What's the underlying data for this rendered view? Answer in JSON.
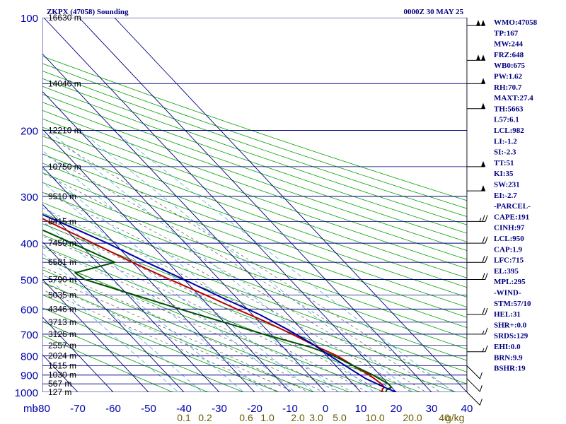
{
  "title_left": "ZKPX (47058) Sounding",
  "title_right": "0000Z 30 MAY 25",
  "axis_corner": "mb",
  "chart_data": {
    "type": "line",
    "title": "ZKPX (47058) Sounding",
    "subtitle": "0000Z 30 MAY 25",
    "pressure_levels": [
      100,
      200,
      300,
      400,
      500,
      600,
      700,
      800,
      900,
      1000
    ],
    "height_labels": [
      {
        "p": 100,
        "label": "16630 m"
      },
      {
        "p": 150,
        "label": "14040 m"
      },
      {
        "p": 200,
        "label": "12210 m"
      },
      {
        "p": 250,
        "label": "10750 m"
      },
      {
        "p": 300,
        "label": "9510 m"
      },
      {
        "p": 350,
        "label": "8415 m"
      },
      {
        "p": 400,
        "label": "7450 m"
      },
      {
        "p": 450,
        "label": "6581 m"
      },
      {
        "p": 500,
        "label": "5790 m"
      },
      {
        "p": 550,
        "label": "5035 m"
      },
      {
        "p": 600,
        "label": "4346 m"
      },
      {
        "p": 650,
        "label": "3713 m"
      },
      {
        "p": 700,
        "label": "3126 m"
      },
      {
        "p": 750,
        "label": "2557 m"
      },
      {
        "p": 800,
        "label": "2024 m"
      },
      {
        "p": 850,
        "label": "1515 m"
      },
      {
        "p": 900,
        "label": "1030 m"
      },
      {
        "p": 950,
        "label": "567 m"
      },
      {
        "p": 1000,
        "label": "127 m"
      }
    ],
    "temperature_ticks": [
      "-80",
      "-70",
      "-60",
      "-50",
      "-40",
      "-30",
      "-20",
      "-10",
      "0",
      "10",
      "20",
      "30",
      "40"
    ],
    "mixing_ratio_labels": [
      "0.1",
      "0.2",
      "0.6",
      "1.0",
      "2.0",
      "3.0",
      "5.0",
      "10.0",
      "20.0",
      "40"
    ],
    "mixing_ratio_unit": "g/kg",
    "xlim": [
      -80,
      40
    ],
    "ylim": [
      1000,
      100
    ],
    "y_scale": "log",
    "series": [
      {
        "key": "temperature",
        "color": "#bb0000",
        "points": [
          [
            -52,
            100
          ],
          [
            -53,
            140
          ],
          [
            -55,
            160
          ],
          [
            -54,
            175
          ],
          [
            -54,
            200
          ],
          [
            -52,
            220
          ],
          [
            -46,
            260
          ],
          [
            -40,
            300
          ],
          [
            -33,
            350
          ],
          [
            -26,
            400
          ],
          [
            -20,
            450
          ],
          [
            -14,
            500
          ],
          [
            -8,
            550
          ],
          [
            -3,
            600
          ],
          [
            2,
            650
          ],
          [
            6,
            700
          ],
          [
            10,
            760
          ],
          [
            13,
            800
          ],
          [
            15,
            850
          ],
          [
            17,
            900
          ],
          [
            18,
            950
          ],
          [
            18,
            970
          ],
          [
            17,
            980
          ],
          [
            16,
            1000
          ]
        ]
      },
      {
        "key": "dewpoint",
        "color": "#005000",
        "points": [
          [
            -65,
            100
          ],
          [
            -64,
            140
          ],
          [
            -62,
            160
          ],
          [
            -62,
            175
          ],
          [
            -57,
            200
          ],
          [
            -53,
            230
          ],
          [
            -52,
            260
          ],
          [
            -50,
            300
          ],
          [
            -40,
            350
          ],
          [
            -32,
            400
          ],
          [
            -25,
            450
          ],
          [
            -39,
            480
          ],
          [
            -38,
            500
          ],
          [
            -19,
            600
          ],
          [
            -2,
            700
          ],
          [
            8,
            760
          ],
          [
            12,
            800
          ],
          [
            15,
            850
          ],
          [
            18,
            900
          ],
          [
            20,
            950
          ],
          [
            20,
            970
          ],
          [
            18,
            985
          ],
          [
            17,
            1000
          ]
        ]
      },
      {
        "key": "parcel",
        "color": "#0000aa",
        "points": [
          [
            -86,
            150
          ],
          [
            -70,
            200
          ],
          [
            -52,
            260
          ],
          [
            -40,
            300
          ],
          [
            -30,
            350
          ],
          [
            -22,
            400
          ],
          [
            -16,
            450
          ],
          [
            -10,
            500
          ],
          [
            -4,
            560
          ],
          [
            2,
            620
          ],
          [
            6,
            680
          ],
          [
            9,
            740
          ],
          [
            11,
            800
          ],
          [
            13,
            860
          ],
          [
            15,
            920
          ],
          [
            18,
            970
          ],
          [
            20,
            1000
          ],
          [
            21,
            1020
          ]
        ]
      }
    ],
    "wind_barbs": [
      {
        "p": 105,
        "dir": 270,
        "spd": 100
      },
      {
        "p": 130,
        "dir": 270,
        "spd": 100
      },
      {
        "p": 150,
        "dir": 270,
        "spd": 50
      },
      {
        "p": 175,
        "dir": 270,
        "spd": 50
      },
      {
        "p": 250,
        "dir": 270,
        "spd": 50
      },
      {
        "p": 290,
        "dir": 270,
        "spd": 50
      },
      {
        "p": 350,
        "dir": 270,
        "spd": 25
      },
      {
        "p": 400,
        "dir": 270,
        "spd": 20
      },
      {
        "p": 450,
        "dir": 270,
        "spd": 20
      },
      {
        "p": 500,
        "dir": 270,
        "spd": 20
      },
      {
        "p": 620,
        "dir": 270,
        "spd": 20
      },
      {
        "p": 700,
        "dir": 270,
        "spd": 15
      },
      {
        "p": 780,
        "dir": 270,
        "spd": 15
      },
      {
        "p": 850,
        "dir": 225,
        "spd": 10
      },
      {
        "p": 920,
        "dir": 225,
        "spd": 10
      },
      {
        "p": 1000,
        "dir": 225,
        "spd": 10
      }
    ]
  },
  "indices": [
    "WMO:47058",
    "TP:167",
    "MW:244",
    "FRZ:648",
    "WB0:675",
    "PW:1.62",
    "RH:70.7",
    "MAXT:27.4",
    "TH:5663",
    "L57:6.1",
    "LCL:982",
    "LI:-1.2",
    "SI:-2.3",
    "TT:51",
    "KI:35",
    "SW:231",
    "EI:-2.7",
    "-PARCEL-",
    "CAPE:191",
    "CINH:97",
    "LCL:950",
    "CAP:1.9",
    "LFC:715",
    "EL:395",
    "MPL:295",
    "-WIND-",
    "STM:57/10",
    "HEL:31",
    "SHR+:0.0",
    "SRDS:129",
    "EHI:0.0",
    "BRN:9.9",
    "BSHR:19"
  ],
  "colors": {
    "isobar": "#000080",
    "isotherm": "#000080",
    "dry_adiabat": "#00a000",
    "moist_adiabat": "#555555",
    "mixing_ratio": "#3399dd",
    "temperature": "#bb0000",
    "dewpoint": "#005000",
    "parcel": "#0000aa",
    "index_text": "#000080"
  }
}
